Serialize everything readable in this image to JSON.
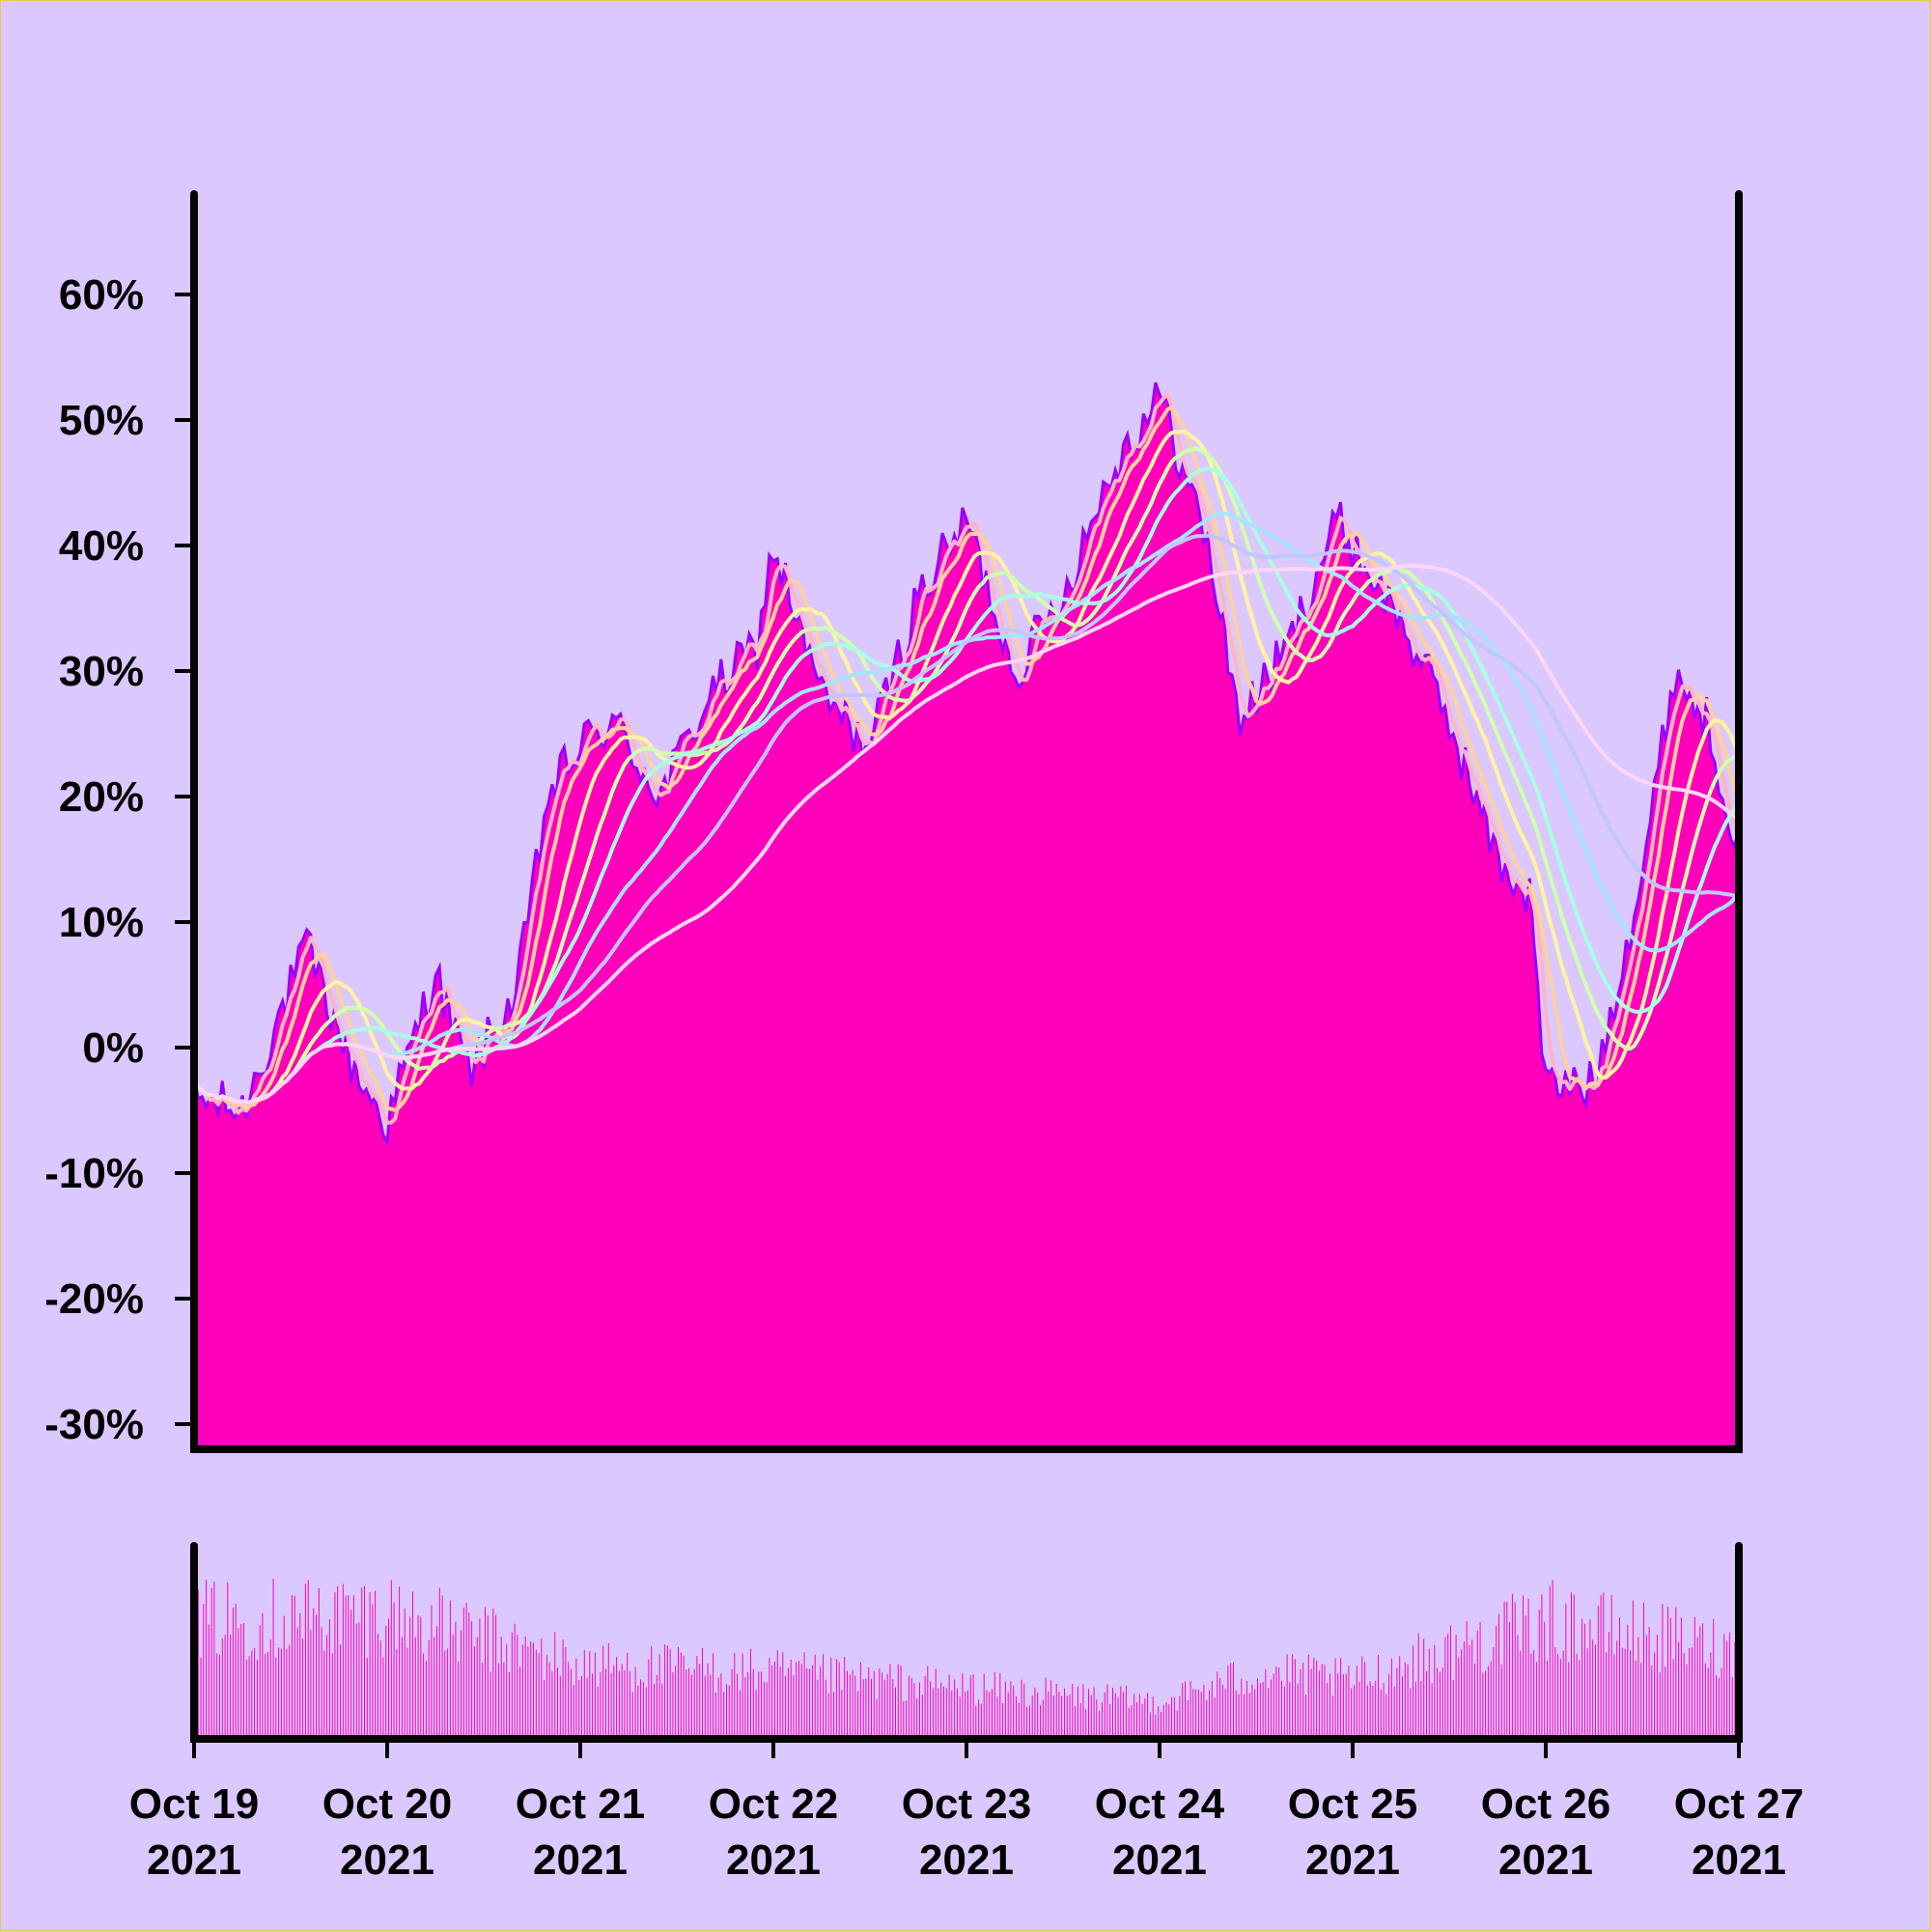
{
  "chart_data": [
    {
      "type": "area",
      "title": "",
      "xlabel": "",
      "ylabel": "",
      "ylim": [
        -32,
        68
      ],
      "xlim": [
        "2021-10-19",
        "2021-10-27"
      ],
      "grid": false,
      "legend": "none",
      "area_color": "#ff00bb",
      "price_line_color": "#9a00ff",
      "y_ticks": [
        {
          "value": 60,
          "label": "60%"
        },
        {
          "value": 50,
          "label": "50%"
        },
        {
          "value": 40,
          "label": "40%"
        },
        {
          "value": 30,
          "label": "30%"
        },
        {
          "value": 20,
          "label": "20%"
        },
        {
          "value": 10,
          "label": "10%"
        },
        {
          "value": 0,
          "label": "0%"
        },
        {
          "value": -10,
          "label": "-10%"
        },
        {
          "value": -20,
          "label": "-20%"
        },
        {
          "value": -30,
          "label": "-30%"
        }
      ],
      "x_ticks": [
        {
          "value": "2021-10-19",
          "line1": "Oct 19",
          "line2": "2021"
        },
        {
          "value": "2021-10-20",
          "line1": "Oct 20",
          "line2": "2021"
        },
        {
          "value": "2021-10-21",
          "line1": "Oct 21",
          "line2": "2021"
        },
        {
          "value": "2021-10-22",
          "line1": "Oct 22",
          "line2": "2021"
        },
        {
          "value": "2021-10-23",
          "line1": "Oct 23",
          "line2": "2021"
        },
        {
          "value": "2021-10-24",
          "line1": "Oct 24",
          "line2": "2021"
        },
        {
          "value": "2021-10-25",
          "line1": "Oct 25",
          "line2": "2021"
        },
        {
          "value": "2021-10-26",
          "line1": "Oct 26",
          "line2": "2021"
        },
        {
          "value": "2021-10-27",
          "line1": "Oct 27",
          "line2": "2021"
        }
      ],
      "anchors": [
        {
          "t": "2021-10-19 00:00",
          "v": -4
        },
        {
          "t": "2021-10-19 06:00",
          "v": -5
        },
        {
          "t": "2021-10-19 14:00",
          "v": 8
        },
        {
          "t": "2021-10-19 20:00",
          "v": -2
        },
        {
          "t": "2021-10-20 00:00",
          "v": -6
        },
        {
          "t": "2021-10-20 06:00",
          "v": 6
        },
        {
          "t": "2021-10-20 10:00",
          "v": -2
        },
        {
          "t": "2021-10-20 16:00",
          "v": 4
        },
        {
          "t": "2021-10-20 20:00",
          "v": 20
        },
        {
          "t": "2021-10-21 00:00",
          "v": 24
        },
        {
          "t": "2021-10-21 04:00",
          "v": 26
        },
        {
          "t": "2021-10-21 10:00",
          "v": 20
        },
        {
          "t": "2021-10-21 16:00",
          "v": 28
        },
        {
          "t": "2021-10-21 22:00",
          "v": 32
        },
        {
          "t": "2021-10-22 00:00",
          "v": 40
        },
        {
          "t": "2021-10-22 06:00",
          "v": 28
        },
        {
          "t": "2021-10-22 12:00",
          "v": 24
        },
        {
          "t": "2021-10-22 18:00",
          "v": 36
        },
        {
          "t": "2021-10-23 00:00",
          "v": 42
        },
        {
          "t": "2021-10-23 06:00",
          "v": 30
        },
        {
          "t": "2021-10-23 12:00",
          "v": 36
        },
        {
          "t": "2021-10-23 18:00",
          "v": 46
        },
        {
          "t": "2021-10-24 00:00",
          "v": 52
        },
        {
          "t": "2021-10-24 06:00",
          "v": 40
        },
        {
          "t": "2021-10-24 10:00",
          "v": 26
        },
        {
          "t": "2021-10-24 16:00",
          "v": 32
        },
        {
          "t": "2021-10-24 22:00",
          "v": 42
        },
        {
          "t": "2021-10-25 06:00",
          "v": 34
        },
        {
          "t": "2021-10-25 12:00",
          "v": 26
        },
        {
          "t": "2021-10-25 18:00",
          "v": 15
        },
        {
          "t": "2021-10-25 22:00",
          "v": 12
        },
        {
          "t": "2021-10-26 00:00",
          "v": -3
        },
        {
          "t": "2021-10-26 06:00",
          "v": -3
        },
        {
          "t": "2021-10-26 12:00",
          "v": 14
        },
        {
          "t": "2021-10-26 16:00",
          "v": 30
        },
        {
          "t": "2021-10-26 20:00",
          "v": 26
        },
        {
          "t": "2021-10-27 00:00",
          "v": 16
        }
      ],
      "moving_average_windows": [
        4,
        8,
        16,
        24,
        32,
        48,
        64,
        96
      ],
      "moving_average_colors": [
        "#ffb4c2",
        "#ffcf9f",
        "#fff3a3",
        "#d0ffb0",
        "#a8ffe4",
        "#a8e4ff",
        "#c2c6ff",
        "#ffd6f6"
      ]
    },
    {
      "type": "bar",
      "title": "",
      "series_name": "volume",
      "color": "#ff00bb",
      "y_ticks": [],
      "anchors": [
        {
          "t": "2021-10-19 00:00",
          "v": 0.8
        },
        {
          "t": "2021-10-20 00:00",
          "v": 0.85
        },
        {
          "t": "2021-10-21 00:00",
          "v": 0.5
        },
        {
          "t": "2021-10-22 00:00",
          "v": 0.45
        },
        {
          "t": "2021-10-23 00:00",
          "v": 0.35
        },
        {
          "t": "2021-10-24 00:00",
          "v": 0.25
        },
        {
          "t": "2021-10-24 12:00",
          "v": 0.45
        },
        {
          "t": "2021-10-25 00:00",
          "v": 0.4
        },
        {
          "t": "2021-10-26 00:00",
          "v": 0.8
        },
        {
          "t": "2021-10-27 00:00",
          "v": 0.6
        }
      ]
    }
  ]
}
